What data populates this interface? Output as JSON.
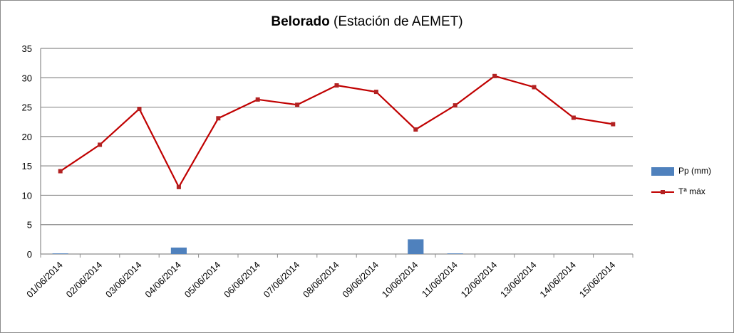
{
  "chart_data": {
    "type": "bar+line",
    "title_bold": "Belorado",
    "title_rest": " (Estación de AEMET)",
    "categories": [
      "01/06/2014",
      "02/06/2014",
      "03/06/2014",
      "04/06/2014",
      "05/06/2014",
      "06/06/2014",
      "07/06/2014",
      "08/06/2014",
      "09/06/2014",
      "10/06/2014",
      "11/06/2014",
      "12/06/2014",
      "13/06/2014",
      "14/06/2014",
      "15/06/2014"
    ],
    "ylim": [
      0,
      35
    ],
    "yticks": [
      0,
      5,
      10,
      15,
      20,
      25,
      30,
      35
    ],
    "grid": true,
    "legend_position": "right",
    "series": [
      {
        "name": "Pp (mm)",
        "kind": "bar",
        "color": "#4f81bd",
        "values": [
          0.1,
          0,
          0,
          1.1,
          0,
          0,
          0,
          0,
          0,
          2.5,
          0.1,
          0,
          0,
          0,
          0
        ]
      },
      {
        "name": "Tª máx",
        "kind": "line",
        "color": "#c00000",
        "marker_color": "#b22222",
        "values": [
          14.1,
          18.6,
          24.7,
          11.4,
          23.1,
          26.3,
          25.4,
          28.7,
          27.6,
          21.2,
          25.3,
          30.3,
          28.4,
          23.2,
          22.1
        ]
      }
    ]
  }
}
